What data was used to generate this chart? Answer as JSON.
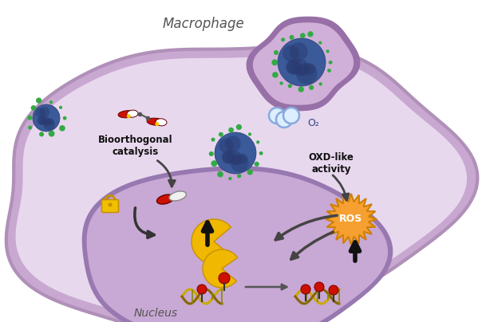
{
  "bg_color": "#ffffff",
  "cell_color_inner": "#e8d8ee",
  "cell_color_outer": "#c8a8d0",
  "cell_border_color": "#b090b8",
  "nucleus_color": "#c8a8d4",
  "nucleus_border_color": "#9878b0",
  "vacuole_color": "#d0b0d8",
  "vacuole_border": "#9870a8",
  "macrophage_label": "Macrophage",
  "nucleus_label": "Nucleus",
  "bioorthogonal_label": "Bioorthogonal\ncatalysis",
  "oxd_label": "OXD-like\nactivity",
  "o2_label": "O₂",
  "ros_label": "ROS",
  "text_color": "#111111",
  "arrow_color": "#444444",
  "ros_fill": "#f5a030",
  "ros_border": "#d08000",
  "yellow_color": "#f0b800",
  "red_dot_color": "#cc1100",
  "dna_yellow": "#c8aa00",
  "dna_olive": "#888800",
  "nano_blue": "#3a5a99",
  "nano_green": "#33aa44",
  "nano_darkblue": "#2a3a70"
}
